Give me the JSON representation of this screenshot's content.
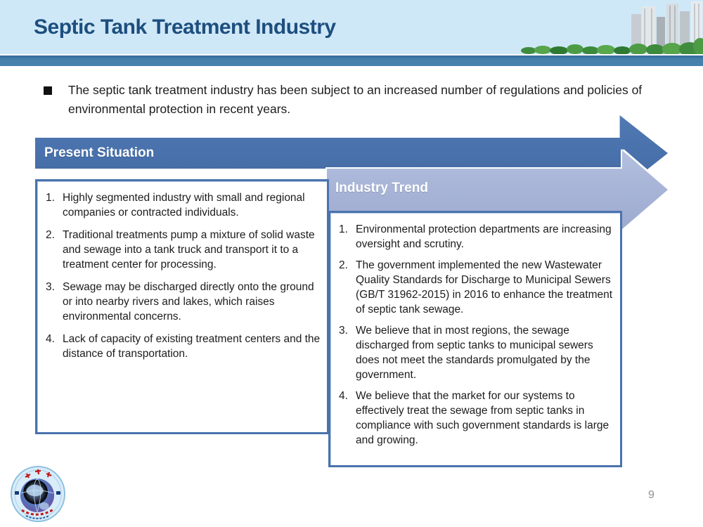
{
  "slide": {
    "title": "Septic Tank Treatment Industry",
    "page_number": "9",
    "intro_bullet": "The septic tank treatment industry has been subject to an increased number of regulations and policies of environmental protection in recent years.",
    "colors": {
      "header_bg": "#cfe8f8",
      "title_text": "#1d4e7e",
      "divider_bar": "#4681ad",
      "dark_arrow": "#4a73ae",
      "light_arrow": "#a9b6d8",
      "panel_border": "#4a73ae",
      "body_text": "#1c1c1c"
    },
    "present_situation": {
      "heading": "Present Situation",
      "items": [
        {
          "n": "1.",
          "text": "Highly segmented industry with small and regional companies or contracted individuals."
        },
        {
          "n": "2.",
          "text": "Traditional treatments pump a mixture of solid waste and sewage into a tank truck and transport it to a treatment center for processing."
        },
        {
          "n": "3.",
          "text": "Sewage may be discharged directly onto the ground or into nearby rivers and lakes, which raises environmental concerns."
        },
        {
          "n": "4.",
          "text": "Lack of capacity of existing treatment centers and the distance of transportation."
        }
      ]
    },
    "industry_trend": {
      "heading": "Industry Trend",
      "items": [
        {
          "n": "1.",
          "text": "Environmental protection departments are increasing oversight and scrutiny."
        },
        {
          "n": "2.",
          "text": "The government implemented the new Wastewater Quality Standards for Discharge to Municipal Sewers (GB/T 31962-2015) in 2016 to enhance the treatment of septic tank sewage."
        },
        {
          "n": "3.",
          "text": "We believe that in most regions, the sewage discharged from septic tanks to municipal sewers does not meet the standards promulgated by the government."
        },
        {
          "n": "4.",
          "text": "We believe that the market for our systems to effectively treat the sewage from septic tanks in compliance with such government standards is large and growing."
        }
      ]
    }
  }
}
